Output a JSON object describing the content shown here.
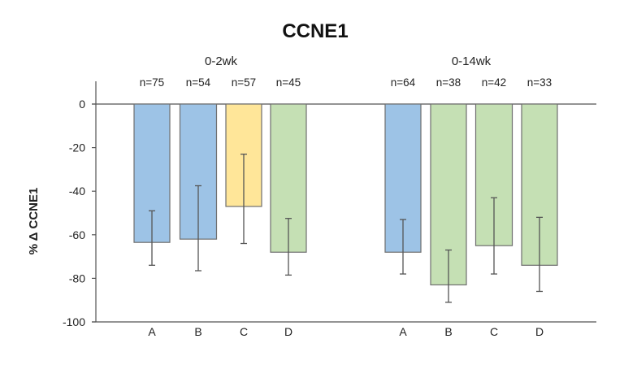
{
  "chart_data": {
    "type": "bar",
    "title": "CCNE1",
    "xlabel": "",
    "ylabel": "% Δ CCNE1",
    "ylim": [
      -100,
      0
    ],
    "yticks": [
      0,
      -20,
      -40,
      -60,
      -80,
      -100
    ],
    "grid": false,
    "legend": "none",
    "groups": [
      {
        "label": "0-2wk",
        "bars": [
          {
            "category": "A",
            "n_label": "n=75",
            "value": -63.5,
            "err_low": -74,
            "err_high": -49,
            "color": "#9dc3e6"
          },
          {
            "category": "B",
            "n_label": "n=54",
            "value": -62,
            "err_low": -76.5,
            "err_high": -37.5,
            "color": "#9dc3e6"
          },
          {
            "category": "C",
            "n_label": "n=57",
            "value": -47,
            "err_low": -64,
            "err_high": -23,
            "color": "#ffe699"
          },
          {
            "category": "D",
            "n_label": "n=45",
            "value": -68,
            "err_low": -78.5,
            "err_high": -52.5,
            "color": "#c5e0b4"
          }
        ]
      },
      {
        "label": "0-14wk",
        "bars": [
          {
            "category": "A",
            "n_label": "n=64",
            "value": -68,
            "err_low": -78,
            "err_high": -53,
            "color": "#9dc3e6"
          },
          {
            "category": "B",
            "n_label": "n=38",
            "value": -83,
            "err_low": -91,
            "err_high": -67,
            "color": "#c5e0b4"
          },
          {
            "category": "C",
            "n_label": "n=42",
            "value": -65,
            "err_low": -78,
            "err_high": -43,
            "color": "#c5e0b4"
          },
          {
            "category": "D",
            "n_label": "n=33",
            "value": -74,
            "err_low": -86,
            "err_high": -52,
            "color": "#c5e0b4"
          }
        ]
      }
    ],
    "colors": {
      "bar_outline": "#6f6f6f",
      "axis": "#555555",
      "error_bar": "#555555"
    }
  }
}
